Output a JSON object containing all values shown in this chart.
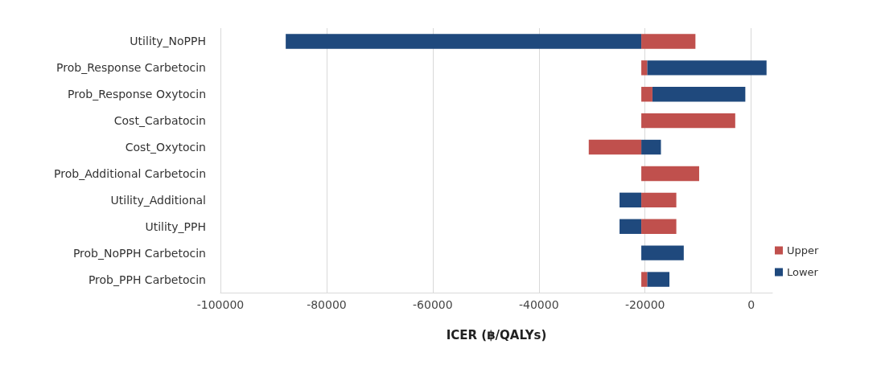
{
  "chart_data": {
    "type": "bar",
    "orientation": "horizontal",
    "xlabel": "ICER (฿/QALYs)",
    "categories": [
      "Utility_NoPPH",
      "Prob_Response Carbetocin",
      "Prob_Response Oxytocin",
      "Cost_Carbatocin",
      "Cost_Oxytocin",
      "Prob_Additional Carbetocin",
      "Utility_Additional",
      "Utility_PPH",
      "Prob_NoPPH Carbetocin",
      "Prob_PPH Carbetocin"
    ],
    "series": [
      {
        "name": "Lower",
        "color": "#1f497d",
        "base": [
          -20700,
          -19600,
          -18600,
          null,
          -20700,
          null,
          -20700,
          -20700,
          -20700,
          -19600
        ],
        "values": [
          -67000,
          22500,
          17500,
          null,
          3700,
          null,
          -4100,
          -4100,
          8000,
          4200
        ]
      },
      {
        "name": "Upper",
        "color": "#c0504d",
        "base": [
          -20700,
          -20700,
          -20700,
          -20700,
          -20700,
          -20700,
          -20700,
          -20700,
          null,
          -20700
        ],
        "values": [
          10200,
          1100,
          2100,
          17700,
          -9900,
          10900,
          6600,
          6600,
          null,
          1100
        ]
      }
    ],
    "xlim": [
      -100000,
      4000
    ],
    "xticks": [
      -100000,
      -80000,
      -60000,
      -40000,
      -20000,
      0
    ],
    "grid": "x",
    "legend": "bottom right"
  }
}
